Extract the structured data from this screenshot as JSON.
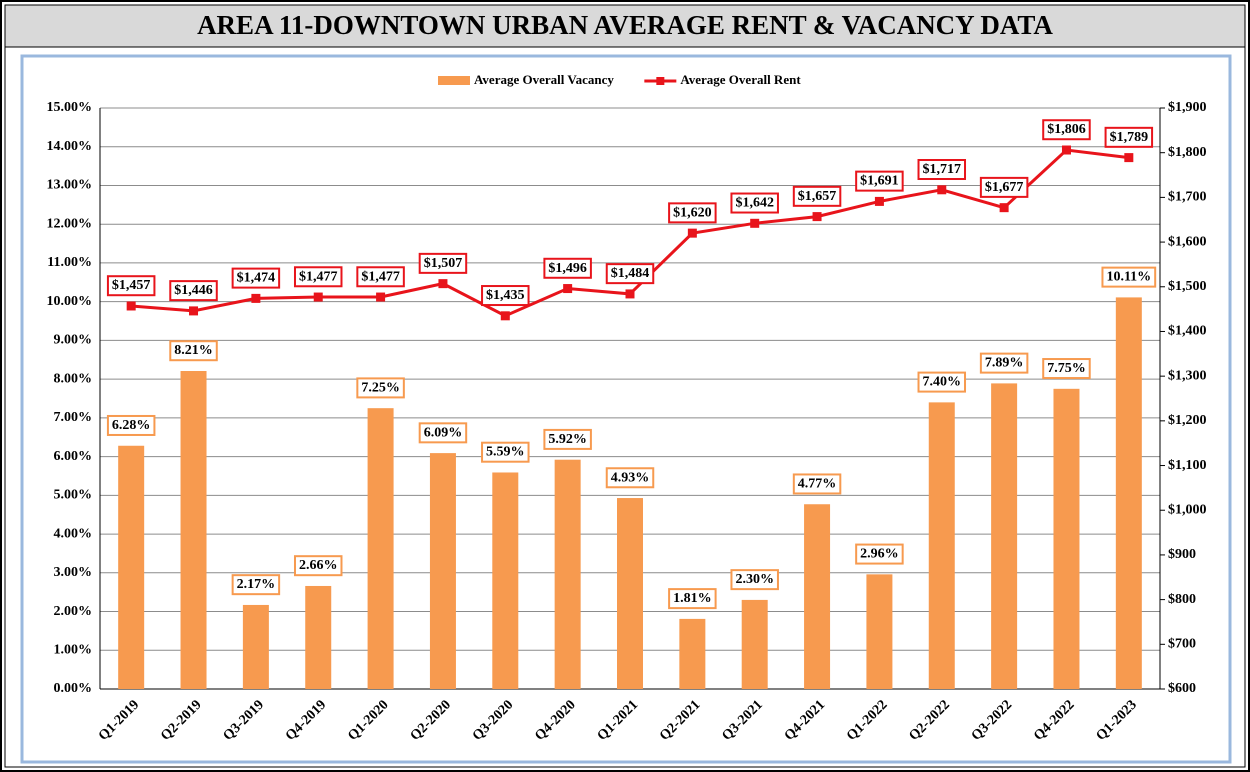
{
  "chart_data": {
    "type": "bar_line",
    "title": "AREA 11-DOWNTOWN URBAN AVERAGE RENT & VACANCY DATA",
    "categories": [
      "Q1-2019",
      "Q2-2019",
      "Q3-2019",
      "Q4-2019",
      "Q1-2020",
      "Q2-2020",
      "Q3-2020",
      "Q4-2020",
      "Q1-2021",
      "Q2-2021",
      "Q3-2021",
      "Q4-2021",
      "Q1-2022",
      "Q2-2022",
      "Q3-2022",
      "Q4-2022",
      "Q1-2023"
    ],
    "series": [
      {
        "name": "Average Overall Vacancy",
        "type": "bar",
        "color": "#f79a4f",
        "values": [
          6.28,
          8.21,
          2.17,
          2.66,
          7.25,
          6.09,
          5.59,
          5.92,
          4.93,
          1.81,
          2.3,
          4.77,
          2.96,
          7.4,
          7.89,
          7.75,
          10.11
        ],
        "value_labels": [
          "6.28%",
          "8.21%",
          "2.17%",
          "2.66%",
          "7.25%",
          "6.09%",
          "5.59%",
          "5.92%",
          "4.93%",
          "1.81%",
          "2.30%",
          "4.77%",
          "2.96%",
          "7.40%",
          "7.89%",
          "7.75%",
          "10.11%"
        ]
      },
      {
        "name": "Average Overall Rent",
        "type": "line",
        "axis": "y2",
        "color": "#e8141b",
        "values": [
          1457,
          1446,
          1474,
          1477,
          1477,
          1507,
          1435,
          1496,
          1484,
          1620,
          1642,
          1657,
          1691,
          1717,
          1677,
          1806,
          1789
        ],
        "value_labels": [
          "$1,457",
          "$1,446",
          "$1,474",
          "$1,477",
          "$1,477",
          "$1,507",
          "$1,435",
          "$1,496",
          "$1,484",
          "$1,620",
          "$1,642",
          "$1,657",
          "$1,691",
          "$1,717",
          "$1,677",
          "$1,806",
          "$1,789"
        ]
      }
    ],
    "ylim": [
      0,
      15
    ],
    "yticks": [
      {
        "value": 0,
        "label": "0.00%"
      },
      {
        "value": 1,
        "label": "1.00%"
      },
      {
        "value": 2,
        "label": "2.00%"
      },
      {
        "value": 3,
        "label": "3.00%"
      },
      {
        "value": 4,
        "label": "4.00%"
      },
      {
        "value": 5,
        "label": "5.00%"
      },
      {
        "value": 6,
        "label": "6.00%"
      },
      {
        "value": 7,
        "label": "7.00%"
      },
      {
        "value": 8,
        "label": "8.00%"
      },
      {
        "value": 9,
        "label": "9.00%"
      },
      {
        "value": 10,
        "label": "10.00%"
      },
      {
        "value": 11,
        "label": "11.00%"
      },
      {
        "value": 12,
        "label": "12.00%"
      },
      {
        "value": 13,
        "label": "13.00%"
      },
      {
        "value": 14,
        "label": "14.00%"
      },
      {
        "value": 15,
        "label": "15.00%"
      }
    ],
    "y2lim": [
      600,
      1900
    ],
    "y2ticks": [
      {
        "value": 600,
        "label": "$600"
      },
      {
        "value": 700,
        "label": "$700"
      },
      {
        "value": 800,
        "label": "$800"
      },
      {
        "value": 900,
        "label": "$900"
      },
      {
        "value": 1000,
        "label": "$1,000"
      },
      {
        "value": 1100,
        "label": "$1,100"
      },
      {
        "value": 1200,
        "label": "$1,200"
      },
      {
        "value": 1300,
        "label": "$1,300"
      },
      {
        "value": 1400,
        "label": "$1,400"
      },
      {
        "value": 1500,
        "label": "$1,500"
      },
      {
        "value": 1600,
        "label": "$1,600"
      },
      {
        "value": 1700,
        "label": "$1,700"
      },
      {
        "value": 1800,
        "label": "$1,800"
      },
      {
        "value": 1900,
        "label": "$1,900"
      }
    ],
    "grid": true,
    "legend": "top"
  }
}
